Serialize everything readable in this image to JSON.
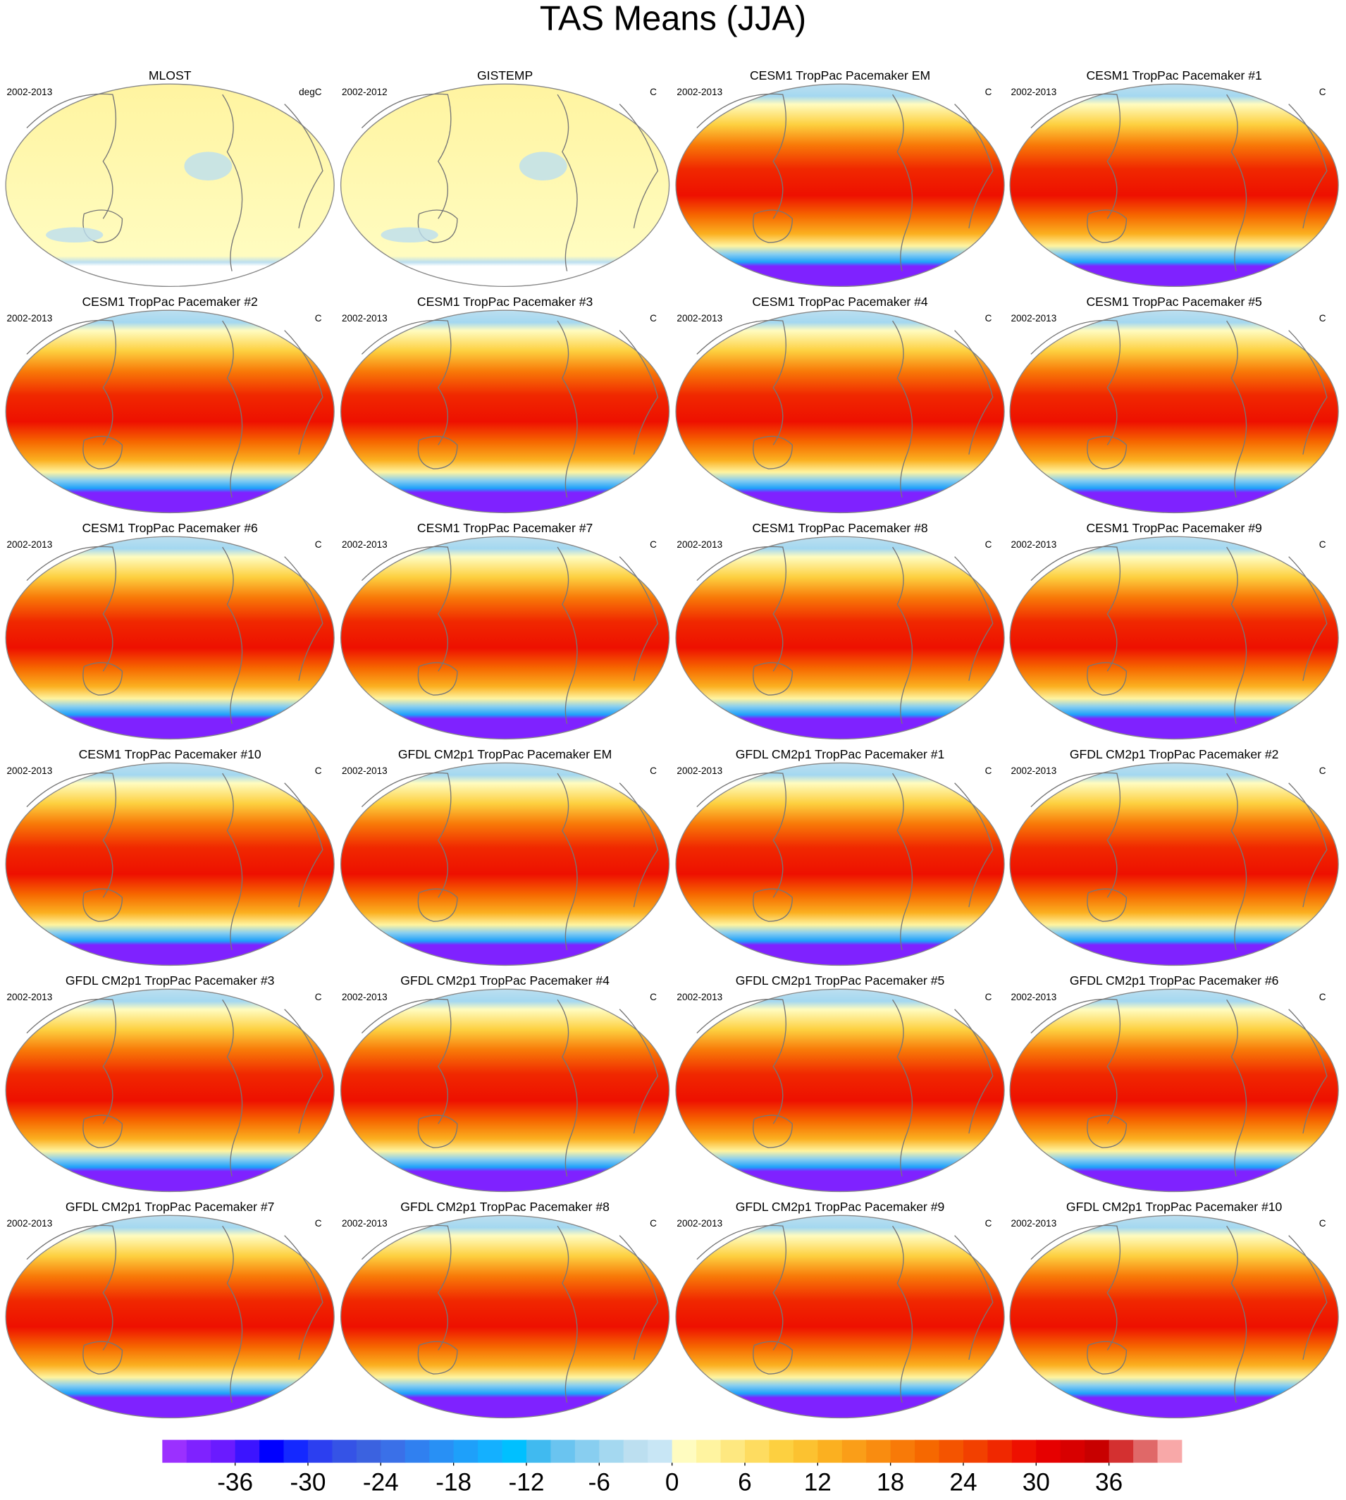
{
  "title": "TAS Means (JJA)",
  "panels": [
    {
      "title": "MLOST",
      "period": "2002-2013",
      "units": "degC"
    },
    {
      "title": "GISTEMP",
      "period": "2002-2012",
      "units": "C"
    },
    {
      "title": "CESM1 TropPac Pacemaker EM",
      "period": "2002-2013",
      "units": "C"
    },
    {
      "title": "CESM1 TropPac Pacemaker #1",
      "period": "2002-2013",
      "units": "C"
    },
    {
      "title": "CESM1 TropPac Pacemaker #2",
      "period": "2002-2013",
      "units": "C"
    },
    {
      "title": "CESM1 TropPac Pacemaker #3",
      "period": "2002-2013",
      "units": "C"
    },
    {
      "title": "CESM1 TropPac Pacemaker #4",
      "period": "2002-2013",
      "units": "C"
    },
    {
      "title": "CESM1 TropPac Pacemaker #5",
      "period": "2002-2013",
      "units": "C"
    },
    {
      "title": "CESM1 TropPac Pacemaker #6",
      "period": "2002-2013",
      "units": "C"
    },
    {
      "title": "CESM1 TropPac Pacemaker #7",
      "period": "2002-2013",
      "units": "C"
    },
    {
      "title": "CESM1 TropPac Pacemaker #8",
      "period": "2002-2013",
      "units": "C"
    },
    {
      "title": "CESM1 TropPac Pacemaker #9",
      "period": "2002-2013",
      "units": "C"
    },
    {
      "title": "CESM1 TropPac Pacemaker #10",
      "period": "2002-2013",
      "units": "C"
    },
    {
      "title": "GFDL CM2p1 TropPac Pacemaker EM",
      "period": "2002-2013",
      "units": "C"
    },
    {
      "title": "GFDL CM2p1 TropPac Pacemaker #1",
      "period": "2002-2013",
      "units": "C"
    },
    {
      "title": "GFDL CM2p1 TropPac Pacemaker #2",
      "period": "2002-2013",
      "units": "C"
    },
    {
      "title": "GFDL CM2p1 TropPac Pacemaker #3",
      "period": "2002-2013",
      "units": "C"
    },
    {
      "title": "GFDL CM2p1 TropPac Pacemaker #4",
      "period": "2002-2013",
      "units": "C"
    },
    {
      "title": "GFDL CM2p1 TropPac Pacemaker #5",
      "period": "2002-2013",
      "units": "C"
    },
    {
      "title": "GFDL CM2p1 TropPac Pacemaker #6",
      "period": "2002-2013",
      "units": "C"
    },
    {
      "title": "GFDL CM2p1 TropPac Pacemaker #7",
      "period": "2002-2013",
      "units": "C"
    },
    {
      "title": "GFDL CM2p1 TropPac Pacemaker #8",
      "period": "2002-2013",
      "units": "C"
    },
    {
      "title": "GFDL CM2p1 TropPac Pacemaker #9",
      "period": "2002-2013",
      "units": "C"
    },
    {
      "title": "GFDL CM2p1 TropPac Pacemaker #10",
      "period": "2002-2013",
      "units": "C"
    }
  ],
  "colorbar": {
    "xlim": [
      -42,
      42
    ],
    "xticks": [
      -36,
      -30,
      -24,
      -18,
      -12,
      -6,
      0,
      6,
      12,
      18,
      24,
      30,
      36
    ],
    "colors": [
      "#9b30ff",
      "#7f22ff",
      "#6a1bff",
      "#3c14ff",
      "#0000ff",
      "#1428ff",
      "#2c3ff0",
      "#3553e6",
      "#3b62e0",
      "#3a70e8",
      "#3080f0",
      "#2890f5",
      "#1ea0fa",
      "#14b0ff",
      "#00c0ff",
      "#40baf0",
      "#6ac4f0",
      "#88cef0",
      "#a4d8f0",
      "#bcdff0",
      "#c8e6f5",
      "#fffcc0",
      "#fff4a0",
      "#fee880",
      "#fedc60",
      "#fdd040",
      "#fcc230",
      "#fbb020",
      "#fa9e18",
      "#f98c10",
      "#f87a08",
      "#f66800",
      "#f45400",
      "#f24000",
      "#f02800",
      "#ee1000",
      "#e60000",
      "#d80000",
      "#c80000",
      "#d43030",
      "#e06868",
      "#f8a8a8"
    ]
  }
}
